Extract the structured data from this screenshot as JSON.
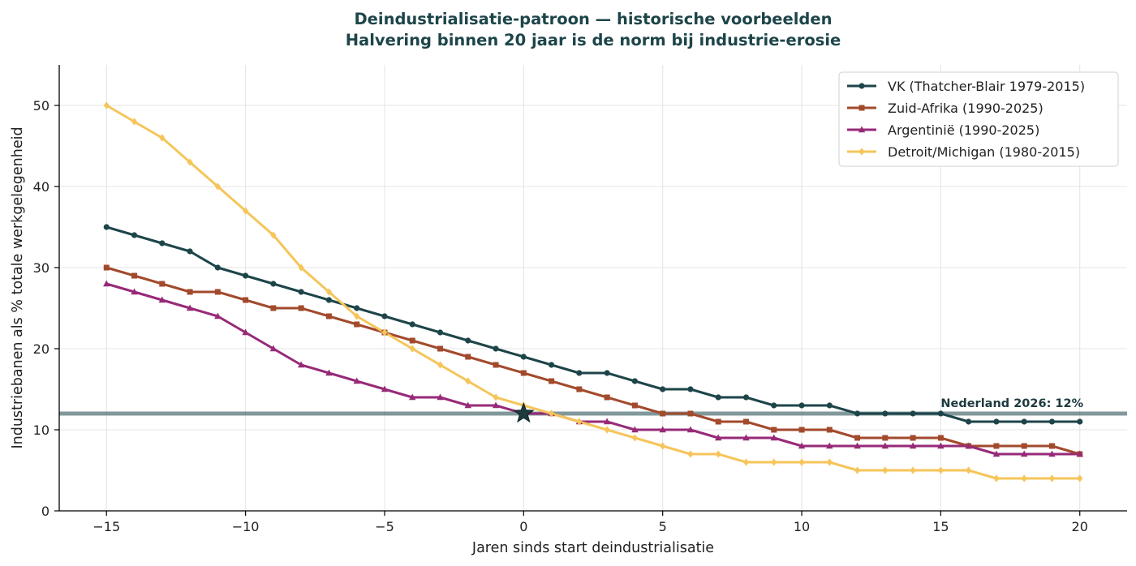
{
  "chart_data": {
    "type": "line",
    "title": "Deindustrialisatie-patroon — historische voorbeelden",
    "subtitle": "Halvering binnen 20 jaar is de norm bij industrie-erosie",
    "xlabel": "Jaren sinds start deindustrialisatie",
    "ylabel": "Industriebanen als % totale werkgelegenheid",
    "xlim": [
      -16.7,
      21.7
    ],
    "ylim": [
      0,
      55
    ],
    "xticks": [
      -15,
      -10,
      -5,
      0,
      5,
      10,
      15,
      20
    ],
    "xtick_labels": [
      "−15",
      "−10",
      "−5",
      "0",
      "5",
      "10",
      "15",
      "20"
    ],
    "yticks": [
      0,
      10,
      20,
      30,
      40,
      50
    ],
    "ytick_labels": [
      "0",
      "10",
      "20",
      "30",
      "40",
      "50"
    ],
    "grid": true,
    "legend_position": "top-right",
    "x": [
      -15,
      -14,
      -13,
      -12,
      -11,
      -10,
      -9,
      -8,
      -7,
      -6,
      -5,
      -4,
      -3,
      -2,
      -1,
      0,
      1,
      2,
      3,
      4,
      5,
      6,
      7,
      8,
      9,
      10,
      11,
      12,
      13,
      14,
      15,
      16,
      17,
      18,
      19,
      20
    ],
    "series": [
      {
        "name": "VK (Thatcher-Blair 1979-2015)",
        "color": "#1d4549",
        "marker": "circle",
        "values": [
          35,
          34,
          33,
          32,
          30,
          29,
          28,
          27,
          26,
          25,
          24,
          23,
          22,
          21,
          20,
          19,
          18,
          17,
          17,
          16,
          15,
          15,
          14,
          14,
          13,
          13,
          13,
          12,
          12,
          12,
          12,
          11,
          11,
          11,
          11,
          11
        ]
      },
      {
        "name": "Zuid-Afrika (1990-2025)",
        "color": "#a24a2c",
        "marker": "square",
        "values": [
          30,
          29,
          28,
          27,
          27,
          26,
          25,
          25,
          24,
          23,
          22,
          21,
          20,
          19,
          18,
          17,
          16,
          15,
          14,
          13,
          12,
          12,
          11,
          11,
          10,
          10,
          10,
          9,
          9,
          9,
          9,
          8,
          8,
          8,
          8,
          7
        ]
      },
      {
        "name": "Argentinië (1990-2025)",
        "color": "#972a78",
        "marker": "triangle",
        "values": [
          28,
          27,
          26,
          25,
          24,
          22,
          20,
          18,
          17,
          16,
          15,
          14,
          14,
          13,
          13,
          12,
          12,
          11,
          11,
          10,
          10,
          10,
          9,
          9,
          9,
          8,
          8,
          8,
          8,
          8,
          8,
          8,
          7,
          7,
          7,
          7
        ]
      },
      {
        "name": "Detroit/Michigan (1980-2015)",
        "color": "#f5c55a",
        "marker": "diamond",
        "values": [
          50,
          48,
          46,
          43,
          40,
          37,
          34,
          30,
          27,
          24,
          22,
          20,
          18,
          16,
          14,
          13,
          12,
          11,
          10,
          9,
          8,
          7,
          7,
          6,
          6,
          6,
          6,
          5,
          5,
          5,
          5,
          5,
          4,
          4,
          4,
          4
        ]
      }
    ],
    "reference_line": {
      "y": 12,
      "label": "Nederland 2026: 12%",
      "color": "#2f5358"
    },
    "star_marker": {
      "x": 0,
      "y": 12,
      "color": "#1d3a3f"
    },
    "title_color": "#1d4549"
  }
}
